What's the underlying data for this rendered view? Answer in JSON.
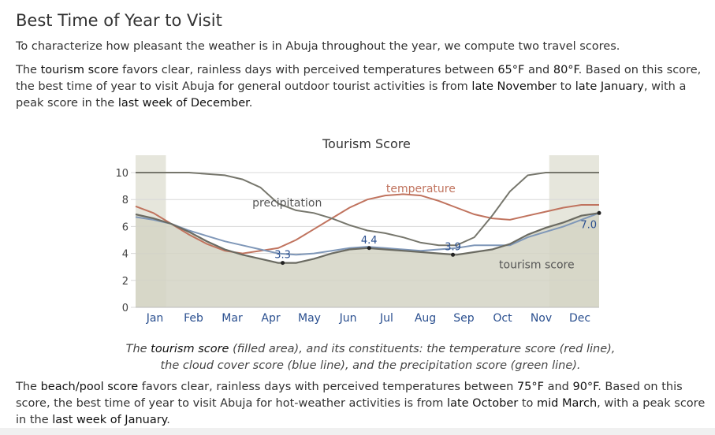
{
  "page": {
    "heading": "Best Time of Year to Visit",
    "intro": "To characterize how pleasant the weather is in Abuja throughout the year, we compute two travel scores.",
    "tourism_paragraph": {
      "t1": "The ",
      "term": "tourism score",
      "t2": " favors clear, rainless days with perceived temperatures between ",
      "temp_low": "65°F",
      "t3": " and ",
      "temp_high": "80°F",
      "t4": ". Based on this score, the best time of year to visit Abuja for general outdoor tourist activities is from ",
      "from": "late November",
      "t5": " to ",
      "to": "late January",
      "t6": ", with a peak score in the ",
      "peak": "last week of December",
      "t7": "."
    },
    "caption": {
      "c1": "The ",
      "term": "tourism score",
      "c2": " (filled area), and its constituents: the temperature score (red line), the cloud cover score (blue line), and the precipitation score (green line)."
    },
    "beach_paragraph": {
      "t1": "The ",
      "term": "beach/pool score",
      "t2": " favors clear, rainless days with perceived temperatures between ",
      "temp_low": "75°F",
      "t3": " and ",
      "temp_high": "90°F",
      "t4": ". Based on this score, the best time of year to visit Abuja for hot-weather activities is from ",
      "from": "late October",
      "t5": " to ",
      "to": "mid March",
      "t6": ", with a peak score in the ",
      "peak": "last week of January",
      "t7": "."
    }
  },
  "chart_data": {
    "type": "area",
    "title": "Tourism Score",
    "xlabel": "",
    "ylabel": "",
    "ylim": [
      0,
      10
    ],
    "yticks": [
      0,
      2,
      4,
      6,
      8,
      10
    ],
    "months": [
      "Jan",
      "Feb",
      "Mar",
      "Apr",
      "May",
      "Jun",
      "Jul",
      "Aug",
      "Sep",
      "Oct",
      "Nov",
      "Dec"
    ],
    "x_weeks": [
      0,
      2,
      4,
      6,
      8,
      10,
      12,
      14,
      16,
      18,
      20,
      22,
      24,
      26,
      28,
      30,
      32,
      34,
      36,
      38,
      40,
      42,
      44,
      46,
      48,
      50,
      52
    ],
    "highlight_ranges_weeks": [
      [
        0,
        3.4
      ],
      [
        46.4,
        52
      ]
    ],
    "series": [
      {
        "name": "tourism score",
        "role": "area",
        "color": "#7a7a70",
        "fill": "#d3d3c4",
        "values": [
          6.9,
          6.6,
          6.2,
          5.6,
          4.9,
          4.3,
          3.9,
          3.6,
          3.3,
          3.3,
          3.6,
          4.0,
          4.3,
          4.4,
          4.3,
          4.2,
          4.1,
          4.0,
          3.9,
          4.1,
          4.3,
          4.7,
          5.4,
          5.9,
          6.3,
          6.8,
          7.0
        ]
      },
      {
        "name": "temperature",
        "role": "line",
        "color": "#c0735e",
        "values": [
          7.5,
          7.0,
          6.2,
          5.4,
          4.7,
          4.2,
          4.0,
          4.2,
          4.4,
          5.0,
          5.8,
          6.6,
          7.4,
          8.0,
          8.3,
          8.4,
          8.3,
          7.9,
          7.4,
          6.9,
          6.6,
          6.5,
          6.8,
          7.1,
          7.4,
          7.6,
          7.6
        ]
      },
      {
        "name": "cloud cover",
        "role": "line",
        "color": "#7f97b8",
        "values": [
          6.7,
          6.5,
          6.2,
          5.7,
          5.3,
          4.9,
          4.6,
          4.3,
          4.0,
          3.9,
          4.0,
          4.2,
          4.4,
          4.5,
          4.4,
          4.3,
          4.2,
          4.3,
          4.4,
          4.6,
          4.6,
          4.6,
          5.2,
          5.6,
          6.0,
          6.5,
          7.0
        ]
      },
      {
        "name": "precipitation",
        "role": "line",
        "color": "#76766c",
        "values": [
          10.0,
          10.0,
          10.0,
          10.0,
          9.9,
          9.8,
          9.5,
          8.9,
          7.7,
          7.2,
          7.0,
          6.6,
          6.1,
          5.7,
          5.5,
          5.2,
          4.8,
          4.6,
          4.6,
          5.2,
          6.8,
          8.6,
          9.8,
          10.0,
          10.0,
          10.0,
          10.0
        ]
      }
    ],
    "line_labels": [
      {
        "text": "precipitation",
        "series": "precipitation"
      },
      {
        "text": "temperature",
        "series": "temperature"
      },
      {
        "text": "tourism score",
        "series": "tourism score"
      }
    ],
    "data_labels": [
      {
        "text": "3.3",
        "x": 16.5,
        "y": 3.3
      },
      {
        "text": "4.4",
        "x": 26.2,
        "y": 4.4
      },
      {
        "text": "3.9",
        "x": 35.6,
        "y": 3.9
      },
      {
        "text": "7.0",
        "x": 52.0,
        "y": 7.0
      }
    ]
  }
}
